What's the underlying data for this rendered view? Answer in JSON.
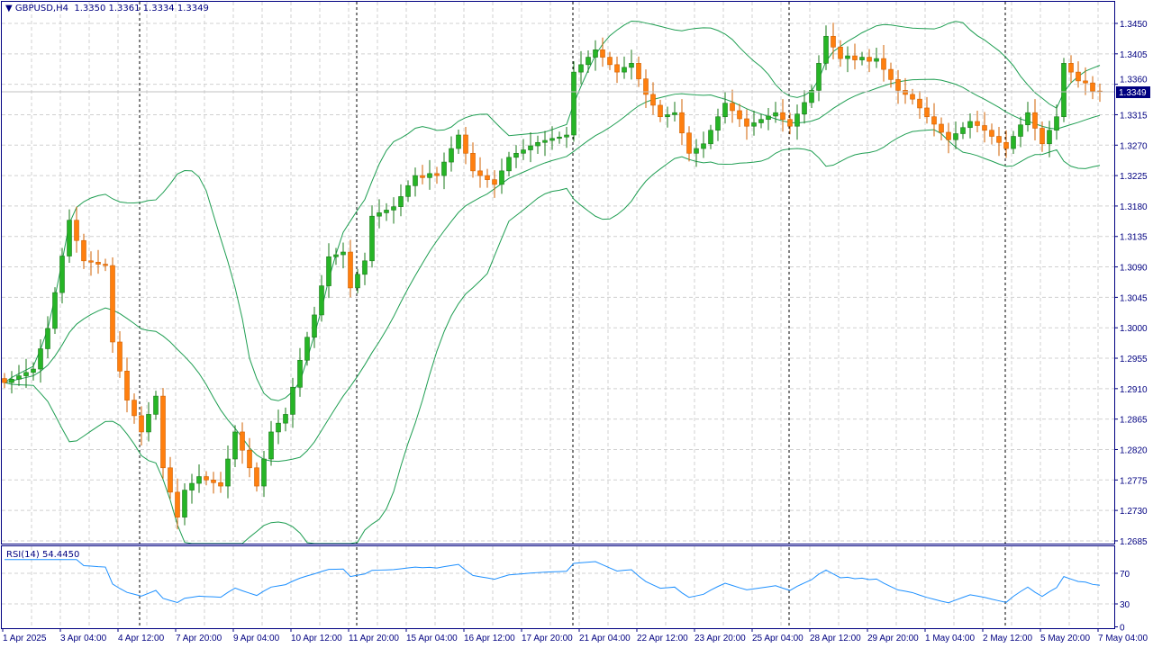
{
  "header": {
    "symbol": "GBPUSD,H4",
    "ohlc": "1.3350 1.3361 1.3334 1.3349"
  },
  "rsi_header": {
    "label": "RSI(14) 54.4450"
  },
  "current_price_label": "1.3349",
  "colors": {
    "bull": "#26b526",
    "bear": "#ff7f0e",
    "bands": "#1f9e52",
    "rsi": "#1e90ff",
    "axis": "#000080",
    "grid": "#d0d0d0"
  },
  "chart_data": {
    "type": "candlestick",
    "title": "GBPUSD,H4",
    "indicators": [
      "Bollinger Bands (20, 2)",
      "RSI(14)"
    ],
    "ylim": [
      1.2685,
      1.347
    ],
    "y_ticks": [
      "1.3450",
      "1.3405",
      "1.3360",
      "1.3315",
      "1.3270",
      "1.3225",
      "1.3180",
      "1.3135",
      "1.3090",
      "1.3045",
      "1.3000",
      "1.2955",
      "1.2910",
      "1.2865",
      "1.2820",
      "1.2775",
      "1.2730",
      "1.2685"
    ],
    "rsi_ticks": [
      "70",
      "30",
      "0"
    ],
    "x_ticks": [
      "1 Apr 2025",
      "3 Apr 04:00",
      "4 Apr 12:00",
      "7 Apr 20:00",
      "9 Apr 04:00",
      "10 Apr 12:00",
      "11 Apr 20:00",
      "15 Apr 04:00",
      "16 Apr 12:00",
      "17 Apr 20:00",
      "21 Apr 04:00",
      "22 Apr 12:00",
      "23 Apr 20:00",
      "25 Apr 04:00",
      "28 Apr 12:00",
      "29 Apr 20:00",
      "1 May 04:00",
      "2 May 12:00",
      "5 May 20:00",
      "7 May 04:00"
    ],
    "first_open": 1.2925,
    "closes": [
      1.2919,
      1.2924,
      1.2929,
      1.2934,
      1.2939,
      1.2969,
      1.2999,
      1.3052,
      1.3106,
      1.3159,
      1.3129,
      1.3099,
      1.3097,
      1.3094,
      1.3092,
      1.2979,
      1.2936,
      1.2893,
      1.287,
      1.2846,
      1.2872,
      1.2899,
      1.2793,
      1.2757,
      1.272,
      1.276,
      1.277,
      1.278,
      1.2775,
      1.2771,
      1.2766,
      1.2806,
      1.2846,
      1.2819,
      1.2793,
      1.2766,
      1.2806,
      1.2846,
      1.2859,
      1.2872,
      1.2912,
      1.2952,
      1.2986,
      1.3019,
      1.3062,
      1.3105,
      1.3108,
      1.3112,
      1.3059,
      1.3079,
      1.3099,
      1.3165,
      1.317,
      1.3174,
      1.3179,
      1.3194,
      1.321,
      1.3225,
      1.3222,
      1.3228,
      1.3225,
      1.3245,
      1.3265,
      1.3285,
      1.3258,
      1.3232,
      1.3225,
      1.3219,
      1.3212,
      1.3232,
      1.3252,
      1.3258,
      1.3263,
      1.3269,
      1.3274,
      1.3277,
      1.328,
      1.3282,
      1.3285,
      1.3378,
      1.3389,
      1.34,
      1.3411,
      1.34,
      1.3389,
      1.3378,
      1.3385,
      1.3391,
      1.3368,
      1.3345,
      1.3329,
      1.3312,
      1.3315,
      1.3318,
      1.3288,
      1.3258,
      1.3265,
      1.3272,
      1.3292,
      1.3312,
      1.3332,
      1.3321,
      1.3309,
      1.3298,
      1.3303,
      1.3308,
      1.3313,
      1.3318,
      1.3308,
      1.3298,
      1.3316,
      1.3333,
      1.3351,
      1.3391,
      1.3431,
      1.3415,
      1.3398,
      1.3402,
      1.3396,
      1.34,
      1.3394,
      1.3398,
      1.3382,
      1.3367,
      1.3351,
      1.3345,
      1.3338,
      1.3325,
      1.3312,
      1.3301,
      1.3289,
      1.3278,
      1.3287,
      1.3296,
      1.3305,
      1.3299,
      1.3292,
      1.3283,
      1.3274,
      1.3265,
      1.3283,
      1.33,
      1.3318,
      1.3295,
      1.3272,
      1.3292,
      1.3312,
      1.3391,
      1.3378,
      1.3365,
      1.3362,
      1.335,
      1.3349
    ],
    "last_candle": {
      "open": 1.335,
      "high": 1.3361,
      "low": 1.3334,
      "close": 1.3349
    },
    "rsi_last": 54.445
  }
}
